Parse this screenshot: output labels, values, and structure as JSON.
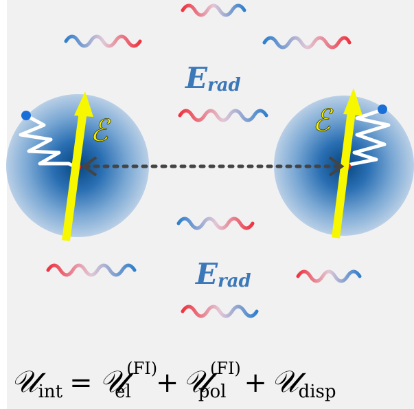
{
  "radiation_label": {
    "symbol": "E",
    "subscript": "rad"
  },
  "field_label": "ℰ",
  "equation": {
    "lhs_symbol": "𝒰",
    "lhs_subscript": "int",
    "equals": "=",
    "term1_symbol": "𝒰",
    "term1_subscript": "el",
    "term1_superscript": "(FI)",
    "plus1": "+",
    "term2_symbol": "𝒰",
    "term2_subscript": "pol",
    "term2_superscript": "(FI)",
    "plus2": "+",
    "term3_symbol": "𝒰",
    "term3_subscript": "disp"
  },
  "colors": {
    "wave_red": "#ef3340",
    "wave_blue": "#2f7fcc",
    "atom_core": "#0a4e9a",
    "field_arrow": "#f7f700",
    "electron": "#1a6ed8",
    "nucleus": "#d91e1e",
    "interaction_line": "#444444"
  }
}
